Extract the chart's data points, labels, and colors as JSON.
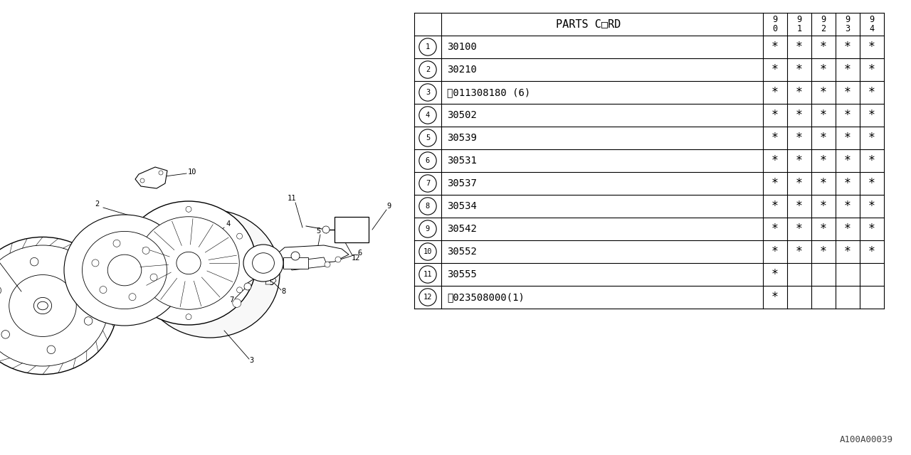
{
  "watermark": "A100A00039",
  "table_header_col": "PARTS C□RD",
  "year_cols": [
    "9\n0",
    "9\n1",
    "9\n2",
    "9\n3",
    "9\n4"
  ],
  "rows": [
    {
      "num": "1",
      "code": "30100",
      "marks": [
        1,
        1,
        1,
        1,
        1
      ]
    },
    {
      "num": "2",
      "code": "30210",
      "marks": [
        1,
        1,
        1,
        1,
        1
      ]
    },
    {
      "num": "3",
      "code": "Ⓑ011308180 (6)",
      "marks": [
        1,
        1,
        1,
        1,
        1
      ]
    },
    {
      "num": "4",
      "code": "30502",
      "marks": [
        1,
        1,
        1,
        1,
        1
      ]
    },
    {
      "num": "5",
      "code": "30539",
      "marks": [
        1,
        1,
        1,
        1,
        1
      ]
    },
    {
      "num": "6",
      "code": "30531",
      "marks": [
        1,
        1,
        1,
        1,
        1
      ]
    },
    {
      "num": "7",
      "code": "30537",
      "marks": [
        1,
        1,
        1,
        1,
        1
      ]
    },
    {
      "num": "8",
      "code": "30534",
      "marks": [
        1,
        1,
        1,
        1,
        1
      ]
    },
    {
      "num": "9",
      "code": "30542",
      "marks": [
        1,
        1,
        1,
        1,
        1
      ]
    },
    {
      "num": "10",
      "code": "30552",
      "marks": [
        1,
        1,
        1,
        1,
        1
      ]
    },
    {
      "num": "11",
      "code": "30555",
      "marks": [
        1,
        0,
        0,
        0,
        0
      ]
    },
    {
      "num": "12",
      "code": "Ⓝ023508000(1)",
      "marks": [
        1,
        0,
        0,
        0,
        0
      ]
    }
  ],
  "bg_color": "#ffffff",
  "line_color": "#000000",
  "text_color": "#000000"
}
